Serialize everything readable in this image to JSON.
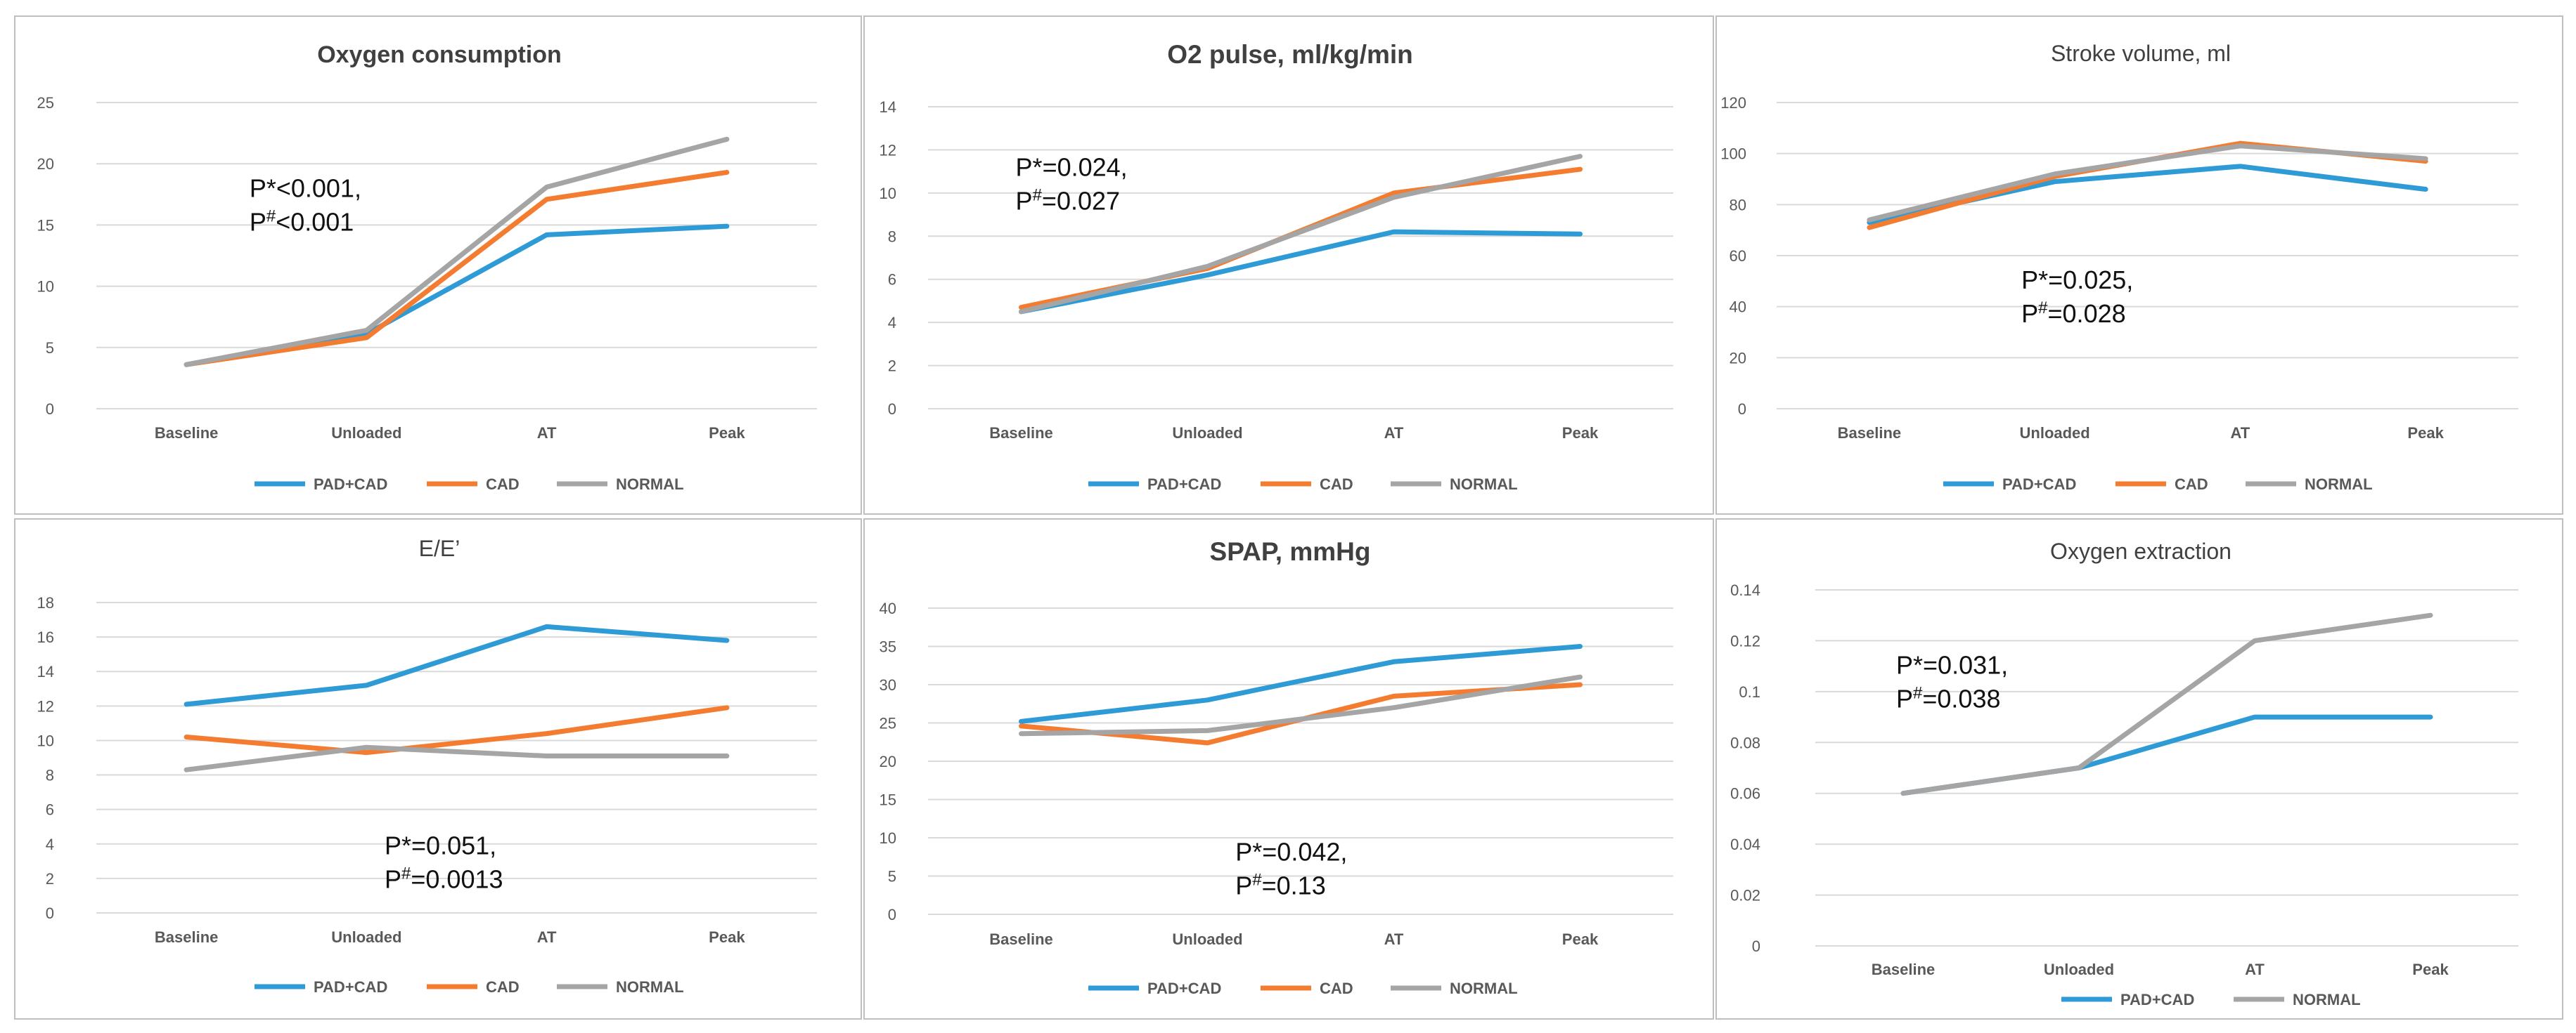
{
  "figure": {
    "colors": {
      "PAD+CAD": "#2E9BD6",
      "CAD": "#F47C30",
      "NORMAL": "#A5A5A5"
    }
  },
  "chart_data": [
    {
      "type": "line",
      "title": "Oxygen consumption",
      "title_bold": true,
      "categories": [
        "Baseline",
        "Unloaded",
        "AT",
        "Peak"
      ],
      "ylim": [
        0,
        25
      ],
      "yticks": [
        0,
        5,
        10,
        15,
        20,
        25
      ],
      "series": [
        {
          "name": "PAD+CAD",
          "values": [
            3.6,
            6.1,
            14.2,
            14.9
          ]
        },
        {
          "name": "CAD",
          "values": [
            3.6,
            5.8,
            17.1,
            19.3
          ]
        },
        {
          "name": "NORMAL",
          "values": [
            3.6,
            6.4,
            18.1,
            22.0
          ]
        }
      ],
      "annotation": {
        "line1": "P*<0.001,",
        "line2_base": "P",
        "line2_sup": "#",
        "line2_rest": "<0.001",
        "at_category": 0.35,
        "at_value": 17.3
      }
    },
    {
      "type": "line",
      "title": "O2 pulse, ml/kg/min",
      "title_bold": true,
      "categories": [
        "Baseline",
        "Unloaded",
        "AT",
        "Peak"
      ],
      "ylim": [
        0,
        14
      ],
      "yticks": [
        0,
        2,
        4,
        6,
        8,
        10,
        12,
        14
      ],
      "series": [
        {
          "name": "PAD+CAD",
          "values": [
            4.5,
            6.2,
            8.2,
            8.1
          ]
        },
        {
          "name": "CAD",
          "values": [
            4.7,
            6.5,
            10.0,
            11.1
          ]
        },
        {
          "name": "NORMAL",
          "values": [
            4.5,
            6.6,
            9.8,
            11.7
          ]
        }
      ],
      "annotation": {
        "line1": "P*=0.024,",
        "line2_base": "P",
        "line2_sup": "#",
        "line2_rest": "=0.027",
        "at_category": -0.03,
        "at_value": 10.8
      }
    },
    {
      "type": "line",
      "title": "Stroke volume, ml",
      "title_bold": false,
      "categories": [
        "Baseline",
        "Unloaded",
        "AT",
        "Peak"
      ],
      "ylim": [
        0,
        120
      ],
      "yticks": [
        0,
        20,
        40,
        60,
        80,
        100,
        120
      ],
      "series": [
        {
          "name": "PAD+CAD",
          "values": [
            73,
            89,
            95,
            86
          ]
        },
        {
          "name": "CAD",
          "values": [
            71,
            91,
            104,
            97
          ]
        },
        {
          "name": "NORMAL",
          "values": [
            74,
            92,
            103,
            98
          ]
        }
      ],
      "annotation": {
        "line1": "P*=0.025,",
        "line2_base": "P",
        "line2_sup": "#",
        "line2_rest": "=0.028",
        "at_category": 0.82,
        "at_value": 47
      }
    },
    {
      "type": "line",
      "title": "E/E’",
      "title_bold": false,
      "categories": [
        "Baseline",
        "Unloaded",
        "AT",
        "Peak"
      ],
      "ylim": [
        0,
        18
      ],
      "yticks": [
        0,
        2,
        4,
        6,
        8,
        10,
        12,
        14,
        16,
        18
      ],
      "series": [
        {
          "name": "PAD+CAD",
          "values": [
            12.1,
            13.2,
            16.6,
            15.8
          ]
        },
        {
          "name": "CAD",
          "values": [
            10.2,
            9.3,
            10.4,
            11.9
          ]
        },
        {
          "name": "NORMAL",
          "values": [
            8.3,
            9.6,
            9.1,
            9.1
          ]
        }
      ],
      "annotation": {
        "line1": "P*=0.051,",
        "line2_base": "P",
        "line2_sup": "#",
        "line2_rest": "=0.0013",
        "at_category": 1.1,
        "at_value": 3.4
      }
    },
    {
      "type": "line",
      "title": "SPAP, mmHg",
      "title_bold": true,
      "categories": [
        "Baseline",
        "Unloaded",
        "AT",
        "Peak"
      ],
      "ylim": [
        0,
        40
      ],
      "yticks": [
        0,
        5,
        10,
        15,
        20,
        25,
        30,
        35,
        40
      ],
      "series": [
        {
          "name": "PAD+CAD",
          "values": [
            25.2,
            28.0,
            33.0,
            35.0
          ]
        },
        {
          "name": "CAD",
          "values": [
            24.6,
            22.4,
            28.5,
            30.0
          ]
        },
        {
          "name": "NORMAL",
          "values": [
            23.6,
            24.0,
            27.0,
            31.0
          ]
        }
      ],
      "annotation": {
        "line1": "P*=0.042,",
        "line2_base": "P",
        "line2_sup": "#",
        "line2_rest": "=0.13",
        "at_category": 1.15,
        "at_value": 7.0
      }
    },
    {
      "type": "line",
      "title": "Oxygen extraction",
      "title_bold": false,
      "categories": [
        "Baseline",
        "Unloaded",
        "AT",
        "Peak"
      ],
      "ylim": [
        0,
        0.14
      ],
      "yticks": [
        "0",
        "0.02",
        "0.04",
        "0.06",
        "0.08",
        "0.1",
        "0.12",
        "0.14"
      ],
      "series": [
        {
          "name": "PAD+CAD",
          "values": [
            0.06,
            0.07,
            0.09,
            0.09
          ]
        },
        {
          "name": "NORMAL",
          "values": [
            0.06,
            0.07,
            0.12,
            0.13
          ]
        }
      ],
      "annotation": {
        "line1": "P*=0.031,",
        "line2_base": "P",
        "line2_sup": "#",
        "line2_rest": "=0.038",
        "at_category": -0.04,
        "at_value": 0.107
      }
    }
  ]
}
